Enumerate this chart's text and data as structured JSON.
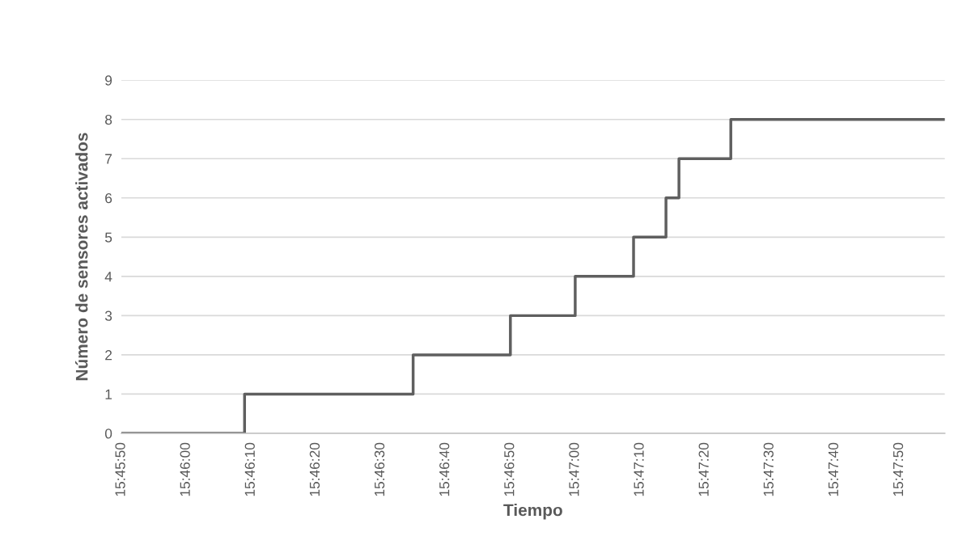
{
  "chart_data": {
    "type": "step",
    "xlabel": "Tiempo",
    "ylabel": "Número de sensores activados",
    "x": [
      15.763889,
      15.769167,
      15.776389,
      15.780556,
      15.783333,
      15.785833,
      15.787222,
      15.787778,
      15.79,
      15.799167
    ],
    "series": [
      {
        "color": "#5f5f5f",
        "values": [
          0,
          1,
          2,
          3,
          4,
          5,
          6,
          7,
          8,
          8
        ]
      }
    ],
    "xlim": [
      15.763889,
      15.799167
    ],
    "xticks": [
      {
        "value": 15.763889,
        "label": "15:45:50"
      },
      {
        "value": 15.766667,
        "label": "15:46:00"
      },
      {
        "value": 15.769444,
        "label": "15:46:10"
      },
      {
        "value": 15.772222,
        "label": "15:46:20"
      },
      {
        "value": 15.775,
        "label": "15:46:30"
      },
      {
        "value": 15.777778,
        "label": "15:46:40"
      },
      {
        "value": 15.780556,
        "label": "15:46:50"
      },
      {
        "value": 15.783333,
        "label": "15:47:00"
      },
      {
        "value": 15.786111,
        "label": "15:47:10"
      },
      {
        "value": 15.788889,
        "label": "15:47:20"
      },
      {
        "value": 15.791667,
        "label": "15:47:30"
      },
      {
        "value": 15.794444,
        "label": "15:47:40"
      },
      {
        "value": 15.797222,
        "label": "15:47:50"
      }
    ],
    "ylim": [
      0,
      9
    ],
    "yticks": [
      0,
      1,
      2,
      3,
      4,
      5,
      6,
      7,
      8,
      9
    ],
    "grid": "y",
    "line_style": "solid"
  }
}
